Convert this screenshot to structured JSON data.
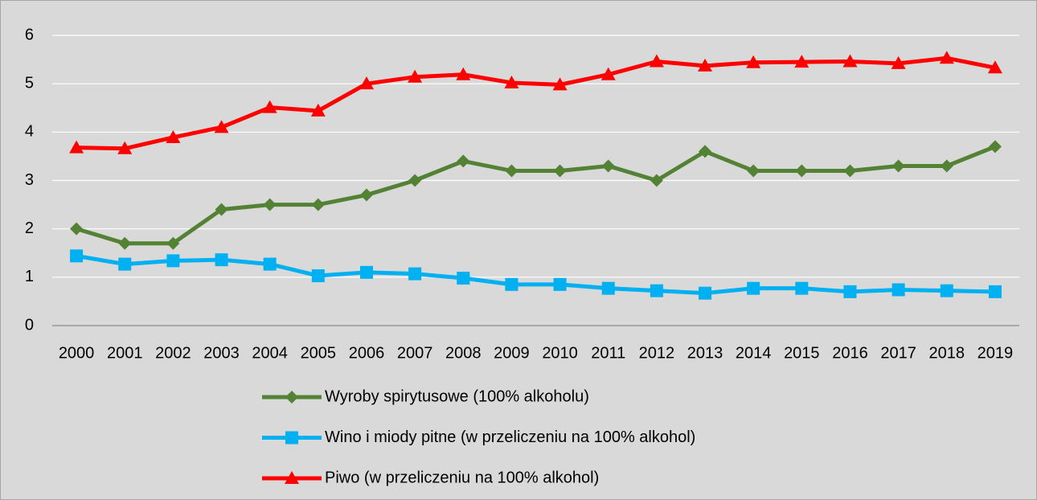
{
  "chart_data": {
    "type": "line",
    "categories": [
      "2000",
      "2001",
      "2002",
      "2003",
      "2004",
      "2005",
      "2006",
      "2007",
      "2008",
      "2009",
      "2010",
      "2011",
      "2012",
      "2013",
      "2014",
      "2015",
      "2016",
      "2017",
      "2018",
      "2019"
    ],
    "series": [
      {
        "name": "Wyroby spirytusowe (100% alkoholu)",
        "color": "#548235",
        "marker": "diamond",
        "values": [
          2.0,
          1.7,
          1.7,
          2.4,
          2.5,
          2.5,
          2.7,
          3.0,
          3.4,
          3.2,
          3.2,
          3.3,
          3.0,
          3.6,
          3.2,
          3.2,
          3.2,
          3.3,
          3.3,
          3.7
        ]
      },
      {
        "name": "Wino i miody pitne (w przeliczeniu na 100% alkohol)",
        "color": "#00b0f0",
        "marker": "square",
        "values": [
          1.44,
          1.27,
          1.34,
          1.36,
          1.27,
          1.03,
          1.1,
          1.07,
          0.98,
          0.85,
          0.85,
          0.77,
          0.72,
          0.67,
          0.77,
          0.77,
          0.7,
          0.74,
          0.72,
          0.7
        ]
      },
      {
        "name": "Piwo (w przeliczeniu na 100% alkohol)",
        "color": "#ff0000",
        "marker": "triangle",
        "values": [
          3.68,
          3.66,
          3.89,
          4.1,
          4.51,
          4.44,
          5.0,
          5.14,
          5.19,
          5.02,
          4.98,
          5.19,
          5.46,
          5.37,
          5.44,
          5.45,
          5.46,
          5.42,
          5.53,
          5.33
        ]
      }
    ],
    "ylim": [
      0,
      6
    ],
    "yticks": [
      0,
      1,
      2,
      3,
      4,
      5,
      6
    ],
    "grid": true,
    "legend": "bottom"
  }
}
